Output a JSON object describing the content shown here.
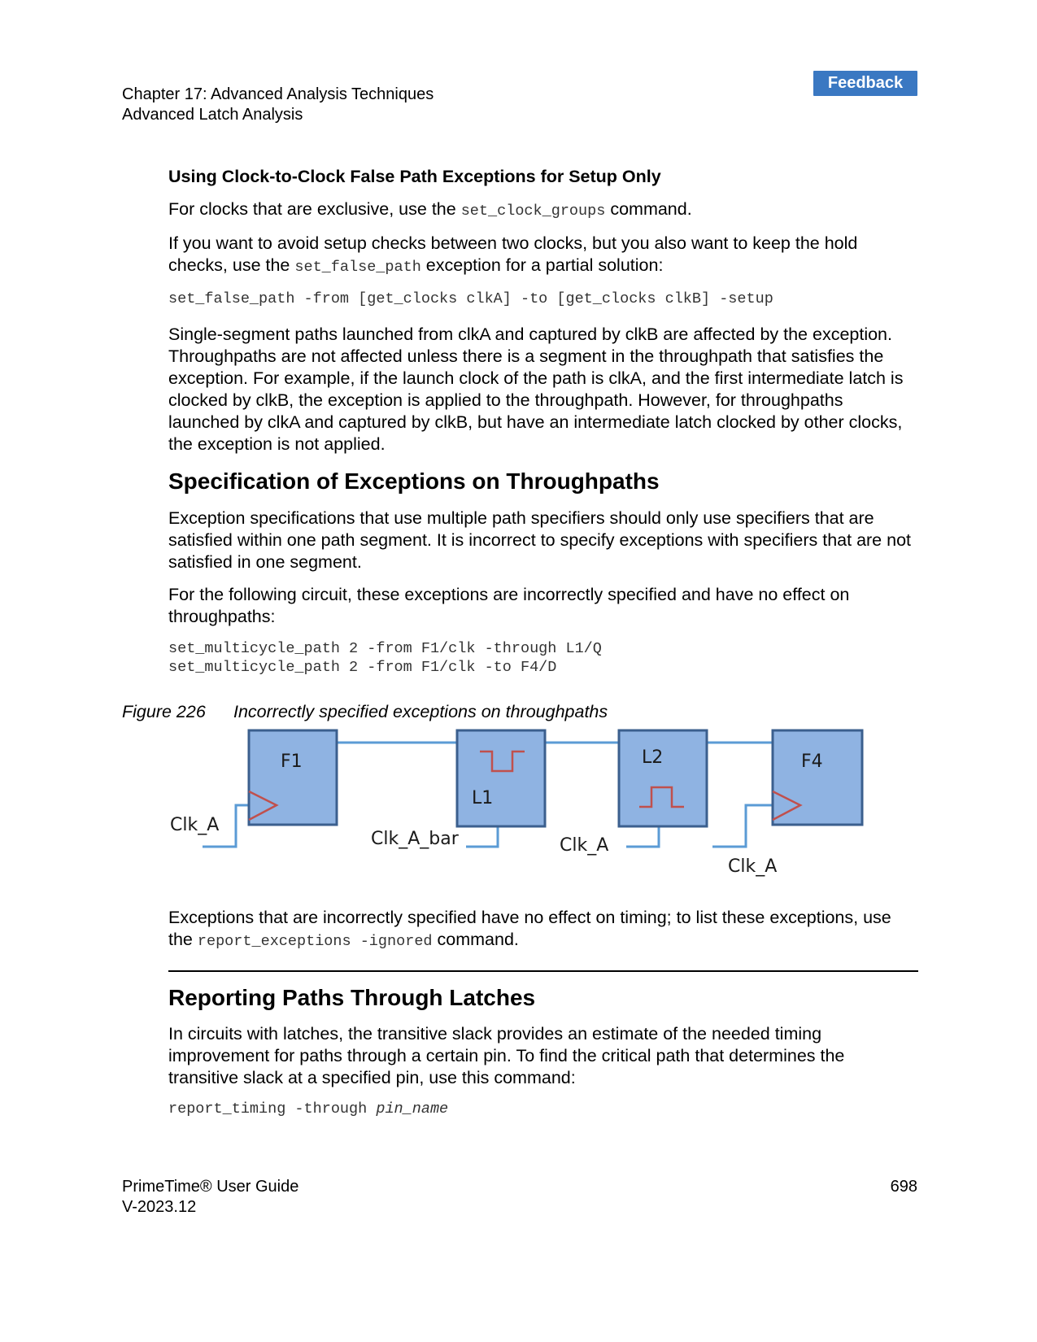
{
  "header": {
    "chapter": "Chapter 17: Advanced Analysis Techniques",
    "section": "Advanced Latch Analysis",
    "feedback_label": "Feedback"
  },
  "sec1": {
    "title": "Using Clock-to-Clock False Path Exceptions for Setup Only",
    "p1_before": "For clocks that are exclusive, use the",
    "p1_code": "set_clock_groups",
    "p1_after": "command.",
    "p2_before": "If you want to avoid setup checks between two clocks, but you also want to keep the hold checks, use the",
    "p2_code": "set_false_path",
    "p2_after": "exception for a partial solution:",
    "code": "set_false_path -from [get_clocks clkA] -to [get_clocks clkB] -setup",
    "p3": "Single-segment paths launched from clkA and captured by clkB are affected by the exception. Throughpaths are not affected unless there is a segment in the throughpath that satisfies the exception. For example, if the launch clock of the path is clkA, and the first intermediate latch is clocked by clkB, the exception is applied to the throughpath. However, for throughpaths launched by clkA and captured by clkB, but have an intermediate latch clocked by other clocks, the exception is not applied."
  },
  "sec2": {
    "title": "Specification of Exceptions on Throughpaths",
    "p1": "Exception specifications that use multiple path specifiers should only use specifiers that are satisfied within one path segment. It is incorrect to specify exceptions with specifiers that are not satisfied in one segment.",
    "p2": "For the following circuit, these exceptions are incorrectly specified and have no effect on throughpaths:",
    "code1": "set_multicycle_path 2 -from F1/clk -through L1/Q",
    "code2": "set_multicycle_path 2 -from F1/clk -to F4/D",
    "figure_num": "Figure 226",
    "figure_title": "Incorrectly specified exceptions on throughpaths",
    "p3_before": "Exceptions that are incorrectly specified have no effect on timing; to list these exceptions, use the",
    "p3_code": "report_exceptions -ignored",
    "p3_after": "command."
  },
  "diagram": {
    "f1": "F1",
    "l1": "L1",
    "l2": "L2",
    "f4": "F4",
    "clk1": "Clk_A",
    "clk2": "Clk_A_bar",
    "clk3": "Clk_A",
    "clk4": "Clk_A",
    "colors": {
      "box_fill": "#8fb3e2",
      "box_stroke": "#3b5f8e",
      "wire": "#5b9bd5",
      "waveform": "#c0504d"
    }
  },
  "sec3": {
    "title": "Reporting Paths Through Latches",
    "p1": "In circuits with latches, the transitive slack provides an estimate of the needed timing improvement for paths through a certain pin. To find the critical path that determines the transitive slack at a specified pin, use this command:",
    "code_cmd": "report_timing -through ",
    "code_arg": "pin_name"
  },
  "footer": {
    "product": "PrimeTime® User Guide",
    "version": "V-2023.12",
    "page": "698"
  }
}
